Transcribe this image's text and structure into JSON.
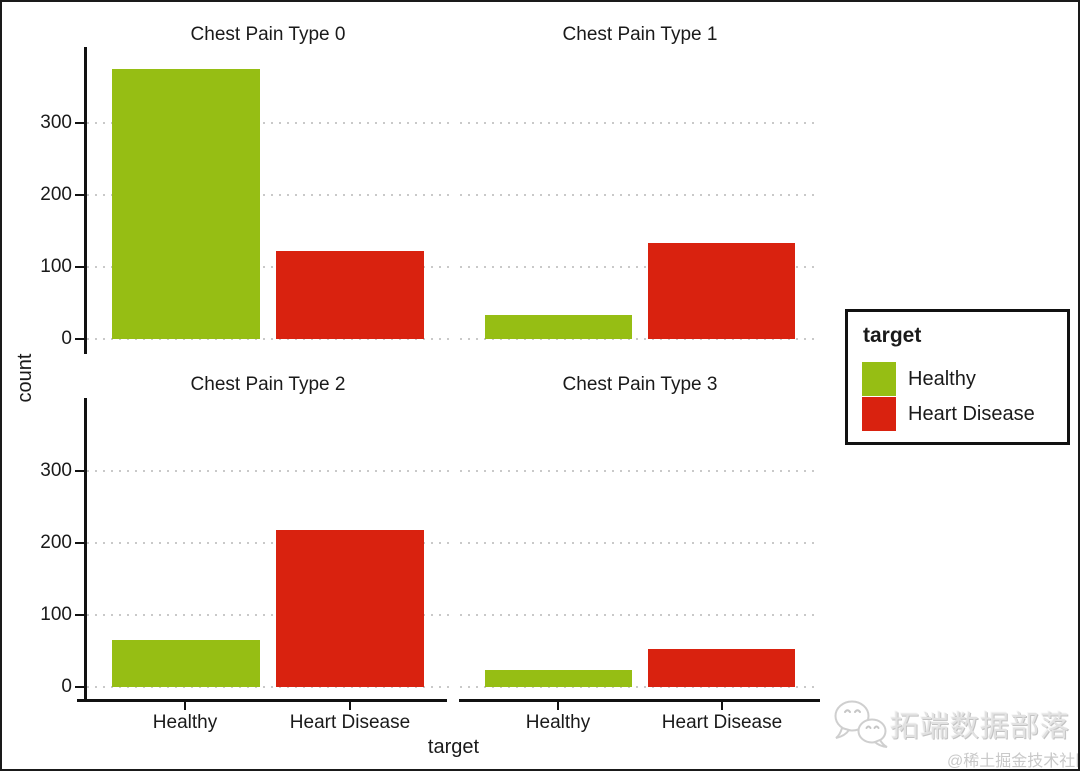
{
  "chart_data": {
    "type": "bar",
    "facets": [
      {
        "title": "Chest Pain Type 0",
        "values": [
          375,
          122
        ]
      },
      {
        "title": "Chest Pain Type 1",
        "values": [
          33,
          134
        ]
      },
      {
        "title": "Chest Pain Type 2",
        "values": [
          65,
          219
        ]
      },
      {
        "title": "Chest Pain Type 3",
        "values": [
          24,
          53
        ]
      }
    ],
    "categories": [
      "Healthy",
      "Heart Disease"
    ],
    "series": [
      {
        "name": "Healthy",
        "color": "#96BE14"
      },
      {
        "name": "Heart Disease",
        "color": "#D9220F"
      }
    ],
    "xlabel": "target",
    "ylabel": "count",
    "yticks": [
      0,
      100,
      200,
      300
    ],
    "ylim": [
      0,
      405
    ],
    "grid": "horizontal-dotted",
    "legend": {
      "title": "target",
      "position": "right",
      "entries": [
        {
          "label": "Healthy",
          "color": "#96BE14"
        },
        {
          "label": "Heart Disease",
          "color": "#D9220F"
        }
      ]
    }
  },
  "watermark": {
    "brand": "拓端数据部落",
    "credit": "@稀土掘金技术社区",
    "logo": "wechat-speech-bubbles-icon"
  }
}
